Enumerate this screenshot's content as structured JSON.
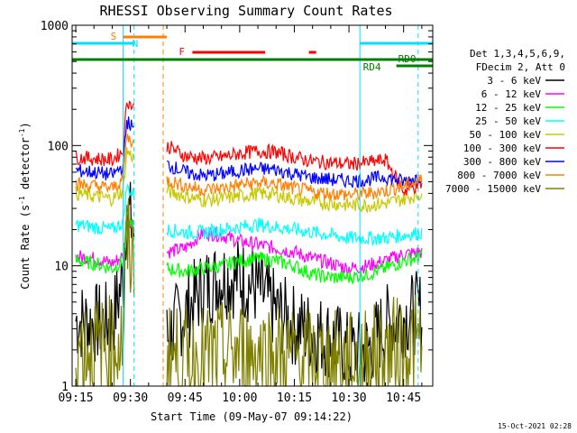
{
  "chart_data": {
    "type": "line",
    "title": "RHESSI Observing Summary Count Rates",
    "xlabel": "Start Time (09-May-07 09:14:22)",
    "ylabel": "Count Rate (s",
    "ylabel_sup1": "-1",
    "ylabel_mid": " detector",
    "ylabel_sup2": "-1",
    "ylabel_end": ")",
    "y_scale": "log",
    "ylim": [
      1,
      1000
    ],
    "xlim": [
      "09:14",
      "10:53"
    ],
    "x_ticks": [
      "09:15",
      "09:30",
      "09:45",
      "10:00",
      "10:15",
      "10:30",
      "10:45"
    ],
    "y_ticks": [
      "1",
      "10",
      "100",
      "1000"
    ],
    "legend_header": [
      "Det 1,3,4,5,6,9,",
      "FDecim 2, Att 0"
    ],
    "timestamp": "15-Oct-2021 02:28",
    "annotations": {
      "S": {
        "label": "S",
        "start": "09:28",
        "end": "09:40",
        "color": "#ff8000"
      },
      "N": {
        "label": "N",
        "start": "09:14",
        "end": "09:31",
        "color": "#00e0ff"
      },
      "N2": {
        "start": "10:33",
        "end": "10:53",
        "color": "#00e0ff"
      },
      "F": {
        "label": "F",
        "segments": [
          [
            "09:47",
            "10:07"
          ],
          [
            "10:19",
            "10:21"
          ]
        ],
        "color": "#ff0000"
      },
      "RD0": {
        "label": "RD0",
        "start": "09:14",
        "end": "10:53",
        "color": "#008000"
      },
      "RD4": {
        "label": "RD4",
        "start": "10:43",
        "end": "10:53",
        "color": "#008000"
      }
    },
    "vlines": [
      {
        "time": "09:28",
        "color": "#00e0ff",
        "style": "solid"
      },
      {
        "time": "09:31",
        "color": "#00e0ff",
        "style": "dashed"
      },
      {
        "time": "09:39",
        "color": "#ff8000",
        "style": "dashed"
      },
      {
        "time": "10:33",
        "color": "#00e0ff",
        "style": "solid"
      },
      {
        "time": "10:49",
        "color": "#00e0ff",
        "style": "dashed"
      }
    ],
    "gaps": [
      [
        "09:31",
        "09:40"
      ]
    ],
    "series": [
      {
        "name": "3 - 6 keV",
        "color": "#000000",
        "x": [
          "09:15",
          "09:20",
          "09:25",
          "09:28",
          "09:29",
          "09:40",
          "09:43",
          "09:46",
          "09:50",
          "09:55",
          "10:00",
          "10:05",
          "10:10",
          "10:15",
          "10:20",
          "10:25",
          "10:30",
          "10:35",
          "10:40",
          "10:45",
          "10:50"
        ],
        "y": [
          3.5,
          3.3,
          3.4,
          8,
          30,
          2.5,
          3.5,
          4.5,
          6.5,
          8,
          8,
          6.5,
          4.2,
          3.2,
          2.8,
          2.5,
          1.9,
          2.0,
          3.2,
          3.8,
          4.2
        ]
      },
      {
        "name": "6 - 12 keV",
        "color": "#ff00ff",
        "x": [
          "09:15",
          "09:20",
          "09:25",
          "09:28",
          "09:29",
          "09:40",
          "09:45",
          "09:50",
          "09:55",
          "10:00",
          "10:05",
          "10:10",
          "10:15",
          "10:20",
          "10:25",
          "10:30",
          "10:35",
          "10:40",
          "10:45",
          "10:50"
        ],
        "y": [
          12,
          11.5,
          10.5,
          12,
          25,
          13,
          14,
          19,
          18,
          16,
          15,
          14,
          13,
          11.5,
          10.5,
          9.5,
          10,
          11,
          12.5,
          13
        ]
      },
      {
        "name": "12 - 25 keV",
        "color": "#00ff00",
        "x": [
          "09:15",
          "09:20",
          "09:25",
          "09:28",
          "09:29",
          "09:40",
          "09:45",
          "09:50",
          "09:55",
          "10:00",
          "10:05",
          "10:10",
          "10:15",
          "10:20",
          "10:25",
          "10:30",
          "10:35",
          "10:40",
          "10:45",
          "10:50"
        ],
        "y": [
          11,
          10.5,
          9.5,
          11,
          25,
          9.5,
          9.0,
          9.5,
          10,
          11,
          11.5,
          11,
          10,
          8.5,
          8.0,
          8.0,
          8.5,
          9.5,
          11,
          12
        ]
      },
      {
        "name": "25 - 50 keV",
        "color": "#00ffff",
        "x": [
          "09:15",
          "09:20",
          "09:25",
          "09:28",
          "09:29",
          "09:40",
          "09:45",
          "09:50",
          "09:55",
          "10:00",
          "10:05",
          "10:10",
          "10:15",
          "10:20",
          "10:25",
          "10:30",
          "10:35",
          "10:40",
          "10:45",
          "10:50"
        ],
        "y": [
          22,
          21,
          20,
          23,
          45,
          20,
          19,
          19,
          20,
          21,
          22,
          21,
          20,
          19,
          18,
          17,
          17,
          17,
          18,
          19
        ]
      },
      {
        "name": "50 - 100 keV",
        "color": "#c8c800",
        "x": [
          "09:15",
          "09:20",
          "09:25",
          "09:28",
          "09:29",
          "09:40",
          "09:45",
          "09:50",
          "09:55",
          "10:00",
          "10:05",
          "10:10",
          "10:15",
          "10:20",
          "10:25",
          "10:30",
          "10:35",
          "10:40",
          "10:45",
          "10:50"
        ],
        "y": [
          40,
          38,
          36,
          42,
          90,
          42,
          38,
          35,
          36,
          38,
          40,
          39,
          36,
          34,
          33,
          32,
          32,
          33,
          36,
          40
        ]
      },
      {
        "name": "100 - 300 keV",
        "color": "#ff0000",
        "x": [
          "09:15",
          "09:20",
          "09:25",
          "09:28",
          "09:29",
          "09:40",
          "09:45",
          "09:50",
          "09:55",
          "10:00",
          "10:05",
          "10:10",
          "10:15",
          "10:20",
          "10:25",
          "10:30",
          "10:35",
          "10:40",
          "10:45",
          "10:50"
        ],
        "y": [
          80,
          78,
          76,
          90,
          240,
          100,
          82,
          78,
          80,
          86,
          90,
          88,
          80,
          74,
          72,
          70,
          72,
          76,
          42,
          48
        ]
      },
      {
        "name": "300 - 800 keV",
        "color": "#0000ff",
        "x": [
          "09:15",
          "09:20",
          "09:25",
          "09:28",
          "09:29",
          "09:40",
          "09:45",
          "09:50",
          "09:55",
          "10:00",
          "10:05",
          "10:10",
          "10:15",
          "10:20",
          "10:25",
          "10:30",
          "10:35",
          "10:40",
          "10:45",
          "10:50"
        ],
        "y": [
          62,
          60,
          57,
          68,
          160,
          70,
          60,
          56,
          58,
          62,
          64,
          63,
          58,
          54,
          52,
          51,
          52,
          55,
          50,
          56
        ]
      },
      {
        "name": "800 - 7000 keV",
        "color": "#ff8000",
        "x": [
          "09:15",
          "09:20",
          "09:25",
          "09:28",
          "09:29",
          "09:40",
          "09:45",
          "09:50",
          "09:55",
          "10:00",
          "10:05",
          "10:10",
          "10:15",
          "10:20",
          "10:25",
          "10:30",
          "10:35",
          "10:40",
          "10:45",
          "10:50"
        ],
        "y": [
          48,
          46,
          44,
          52,
          120,
          52,
          46,
          43,
          44,
          47,
          49,
          48,
          44,
          41,
          40,
          39,
          40,
          42,
          46,
          52
        ]
      },
      {
        "name": "7000 - 15000 keV",
        "color": "#808000",
        "x": [
          "09:15",
          "09:20",
          "09:25",
          "09:28",
          "09:29",
          "09:40",
          "09:45",
          "09:50",
          "09:55",
          "10:00",
          "10:05",
          "10:10",
          "10:15",
          "10:20",
          "10:25",
          "10:30",
          "10:35",
          "10:40",
          "10:45",
          "10:50"
        ],
        "y": [
          2.2,
          2.0,
          2.1,
          2.5,
          15,
          1.8,
          1.6,
          1.7,
          1.8,
          1.9,
          1.9,
          1.8,
          1.7,
          1.6,
          1.6,
          1.5,
          1.7,
          1.9,
          2.1,
          2.2
        ]
      }
    ]
  }
}
